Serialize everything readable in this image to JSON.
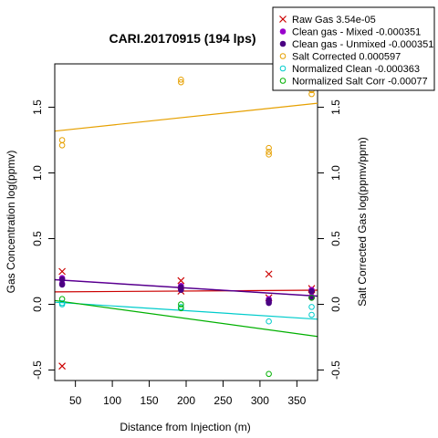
{
  "chart_data": {
    "type": "scatter",
    "title": "CARI.20170915 (194 lps)",
    "xlabel": "Distance from Injection (m)",
    "ylabel_left": "Gas Concentration log(ppmv)",
    "ylabel_right": "Salt Corrected Gas log(ppmv/ppm)",
    "xlim": [
      22,
      378
    ],
    "ylim": [
      -0.58,
      1.83
    ],
    "x_ticks": [
      50,
      100,
      150,
      200,
      250,
      300,
      350
    ],
    "y_ticks": [
      -0.5,
      0.0,
      0.5,
      1.0,
      1.5
    ],
    "y_tick_labels": [
      "-0.5",
      "0.0",
      "0.5",
      "1.0",
      "1.5"
    ],
    "right_y_tick_labels": [
      "-0.5",
      "0.0",
      "0.5",
      "1.0",
      "1.5"
    ],
    "legend_position": "top-right",
    "series": [
      {
        "name": "Raw Gas 3.54e-05",
        "marker": "x",
        "color": "#cc0000",
        "points": [
          [
            32,
            0.25
          ],
          [
            32,
            -0.47
          ],
          [
            193,
            0.18
          ],
          [
            193,
            0.1
          ],
          [
            312,
            0.23
          ],
          [
            312,
            0.05
          ],
          [
            370,
            0.12
          ],
          [
            370,
            0.07
          ]
        ],
        "fit": {
          "slope": 3.54e-05,
          "intercept": 0.094
        }
      },
      {
        "name": "Clean gas - Mixed -0.000351",
        "marker": "dot",
        "color": "#9900cc",
        "points": [
          [
            32,
            0.2
          ],
          [
            32,
            0.16
          ],
          [
            193,
            0.14
          ],
          [
            193,
            0.12
          ],
          [
            312,
            0.04
          ],
          [
            312,
            0.02
          ],
          [
            370,
            0.11
          ],
          [
            370,
            0.06
          ]
        ],
        "fit": {
          "slope": -0.000351,
          "intercept": 0.196
        }
      },
      {
        "name": "Clean gas - Unmixed -0.000351",
        "marker": "dot",
        "color": "#4b0082",
        "points": [
          [
            32,
            0.19
          ],
          [
            32,
            0.15
          ],
          [
            193,
            0.13
          ],
          [
            193,
            0.11
          ],
          [
            312,
            0.03
          ],
          [
            312,
            0.01
          ],
          [
            370,
            0.1
          ],
          [
            370,
            0.05
          ]
        ],
        "fit": {
          "slope": -0.000351,
          "intercept": 0.194
        }
      },
      {
        "name": "Salt Corrected 0.000597",
        "marker": "circle",
        "color": "#e6a000",
        "points": [
          [
            32,
            1.25
          ],
          [
            32,
            1.21
          ],
          [
            193,
            1.71
          ],
          [
            193,
            1.69
          ],
          [
            312,
            1.19
          ],
          [
            312,
            1.16
          ],
          [
            312,
            1.14
          ],
          [
            370,
            1.63
          ],
          [
            370,
            1.6
          ]
        ],
        "fit": {
          "slope": 0.000597,
          "intercept": 1.305
        }
      },
      {
        "name": "Normalized Clean -0.000363",
        "marker": "circle",
        "color": "#00cccc",
        "points": [
          [
            32,
            0.01
          ],
          [
            32,
            0.0
          ],
          [
            193,
            -0.02
          ],
          [
            312,
            -0.13
          ],
          [
            370,
            -0.02
          ],
          [
            370,
            -0.08
          ]
        ],
        "fit": {
          "slope": -0.000363,
          "intercept": 0.024
        }
      },
      {
        "name": "Normalized Salt Corr -0.00077",
        "marker": "circle",
        "color": "#00b000",
        "points": [
          [
            32,
            0.04
          ],
          [
            193,
            0.0
          ],
          [
            193,
            -0.03
          ],
          [
            312,
            -0.53
          ],
          [
            370,
            0.05
          ]
        ],
        "fit": {
          "slope": -0.00077,
          "intercept": 0.046
        }
      }
    ]
  }
}
